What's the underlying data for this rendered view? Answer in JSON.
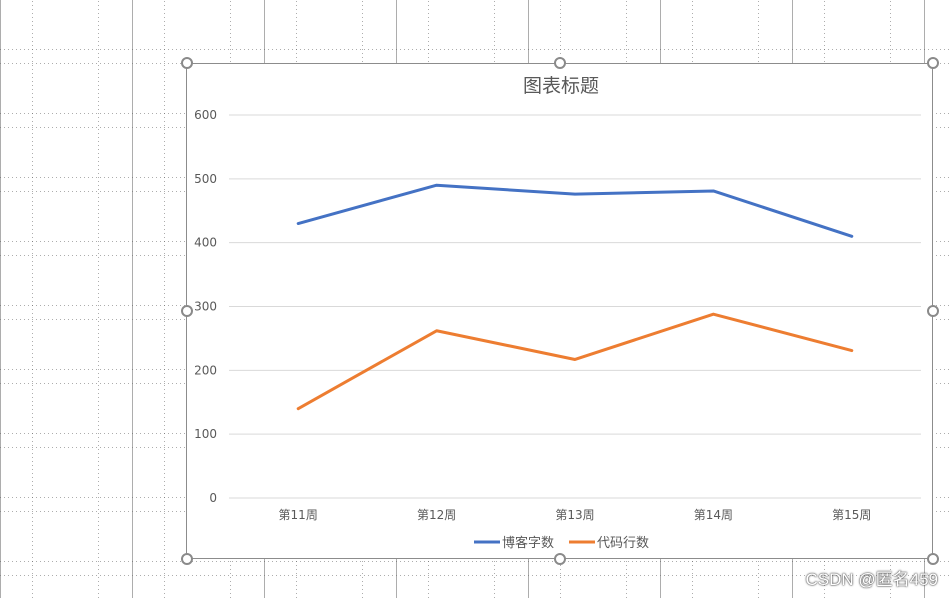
{
  "chart_data": {
    "type": "line",
    "title": "图表标题",
    "categories": [
      "第11周",
      "第12周",
      "第13周",
      "第14周",
      "第15周"
    ],
    "ylim": [
      0,
      600
    ],
    "yticks": [
      0,
      100,
      200,
      300,
      400,
      500,
      600
    ],
    "grid": true,
    "legend_position": "bottom",
    "series": [
      {
        "name": "博客字数",
        "color": "#4472c4",
        "values": [
          430,
          490,
          476,
          481,
          410
        ]
      },
      {
        "name": "代码行数",
        "color": "#ed7d31",
        "values": [
          140,
          262,
          217,
          288,
          231
        ]
      }
    ]
  },
  "watermark": "CSDN @匿名459"
}
